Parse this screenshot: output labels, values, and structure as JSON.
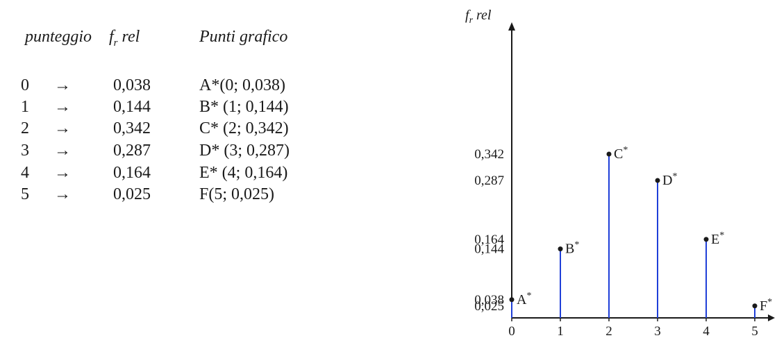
{
  "table": {
    "headers": {
      "score": "punteggio",
      "freq": "f",
      "freq_sub": "r",
      "freq_tail": " rel",
      "points": "Punti grafico"
    },
    "arrow": "→",
    "rows": [
      {
        "score": "0",
        "freq": "0,038",
        "point": "A*(0; 0,038)"
      },
      {
        "score": "1",
        "freq": "0,144",
        "point": "B* (1; 0,144)"
      },
      {
        "score": "2",
        "freq": "0,342",
        "point": "C* (2; 0,342)"
      },
      {
        "score": "3",
        "freq": "0,287",
        "point": "D* (3; 0,287)"
      },
      {
        "score": "4",
        "freq": "0,164",
        "point": "E* (4; 0,164)"
      },
      {
        "score": "5",
        "freq": "0,025",
        "point": "F(5; 0,025)"
      }
    ]
  },
  "chart_data": {
    "type": "bar",
    "ylabel_main": "f",
    "ylabel_sub": "r",
    "ylabel_tail": " rel",
    "xlabel": "",
    "x": [
      0,
      1,
      2,
      3,
      4,
      5
    ],
    "values": [
      0.038,
      0.144,
      0.342,
      0.287,
      0.164,
      0.025
    ],
    "point_labels": [
      "A*",
      "B*",
      "C*",
      "D*",
      "E*",
      "F*"
    ],
    "ytick_labels": [
      "0,342",
      "0,287",
      "0,164",
      "0,144",
      "0,038",
      "0,025"
    ],
    "ytick_values": [
      0.342,
      0.287,
      0.164,
      0.144,
      0.038,
      0.025
    ],
    "xtick_labels": [
      "0",
      "1",
      "2",
      "3",
      "4",
      "5"
    ],
    "colors": {
      "stem": "#1f3fd8",
      "point": "#1a1a1a",
      "axis": "#1a1a1a"
    }
  }
}
